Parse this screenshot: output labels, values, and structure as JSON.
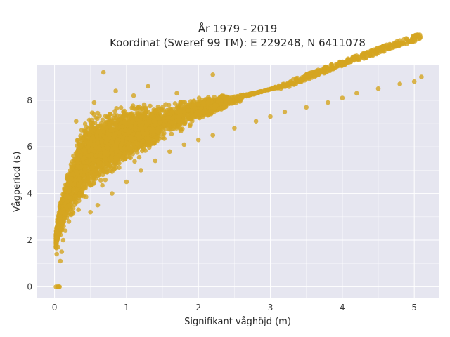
{
  "chart_data": {
    "type": "scatter",
    "title": "År 1979 - 2019",
    "subtitle": "Koordinat (Sweref 99 TM): E 229248, N 6411078",
    "xlabel": "Signifikant våghöjd (m)",
    "ylabel": "Vågperiod (s)",
    "xlim": [
      -0.25,
      5.35
    ],
    "ylim": [
      -0.5,
      9.5
    ],
    "x_ticks": [
      0,
      1,
      2,
      3,
      4,
      5
    ],
    "y_ticks": [
      0,
      2,
      4,
      6,
      8
    ],
    "x_tick_labels": [
      "0",
      "1",
      "2",
      "3",
      "4",
      "5"
    ],
    "y_tick_labels": [
      "0",
      "2",
      "4",
      "6",
      "8"
    ],
    "grid": true,
    "legend": "none",
    "colors": {
      "marker": "#D4A520",
      "plot_background": "#E6E6F0",
      "grid": "#FFFFFF"
    },
    "series": [
      {
        "values": [
          [
            0.02,
            0.0
          ],
          [
            0.04,
            0.0
          ],
          [
            0.05,
            0.0
          ],
          [
            0.06,
            0.0
          ],
          [
            0.07,
            0.0
          ],
          [
            0.03,
            1.4
          ],
          [
            0.05,
            1.7
          ],
          [
            0.08,
            1.1
          ],
          [
            0.1,
            1.5
          ],
          [
            0.12,
            2.0
          ],
          [
            0.15,
            2.4
          ],
          [
            0.2,
            2.8
          ],
          [
            0.25,
            3.2
          ],
          [
            0.3,
            3.6
          ],
          [
            0.35,
            4.0
          ],
          [
            0.4,
            4.4
          ],
          [
            0.5,
            4.9
          ],
          [
            0.6,
            5.4
          ],
          [
            0.7,
            5.8
          ],
          [
            0.8,
            6.2
          ],
          [
            0.9,
            6.6
          ],
          [
            1.0,
            7.0
          ],
          [
            1.2,
            7.3
          ],
          [
            1.4,
            7.5
          ],
          [
            1.5,
            7.7
          ],
          [
            0.5,
            3.2
          ],
          [
            0.6,
            3.5
          ],
          [
            0.8,
            4.0
          ],
          [
            1.0,
            4.5
          ],
          [
            1.2,
            5.0
          ],
          [
            1.4,
            5.4
          ],
          [
            1.6,
            5.8
          ],
          [
            1.8,
            6.1
          ],
          [
            2.0,
            6.3
          ],
          [
            2.2,
            6.5
          ],
          [
            2.5,
            6.8
          ],
          [
            2.8,
            7.1
          ],
          [
            3.0,
            7.3
          ],
          [
            3.2,
            7.5
          ],
          [
            3.5,
            7.7
          ],
          [
            3.8,
            7.9
          ],
          [
            4.0,
            8.1
          ],
          [
            4.2,
            8.3
          ],
          [
            4.5,
            8.5
          ],
          [
            4.8,
            8.7
          ],
          [
            5.0,
            8.8
          ],
          [
            5.1,
            9.0
          ],
          [
            0.68,
            9.2
          ],
          [
            1.3,
            8.6
          ],
          [
            2.2,
            9.1
          ],
          [
            0.3,
            7.1
          ],
          [
            0.55,
            7.9
          ],
          [
            0.85,
            8.4
          ],
          [
            1.1,
            8.2
          ],
          [
            1.7,
            8.3
          ]
        ]
      }
    ]
  }
}
